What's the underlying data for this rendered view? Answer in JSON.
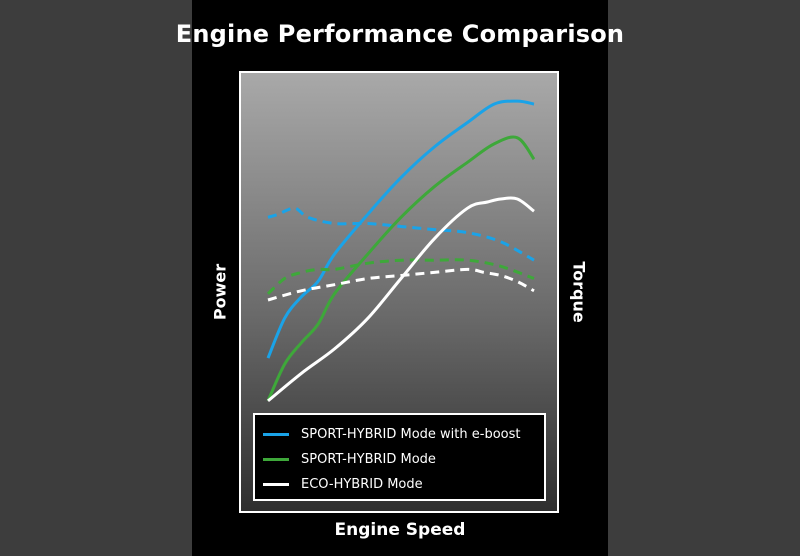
{
  "chart_data": {
    "type": "line",
    "title": "Engine Performance Comparison",
    "xlabel": "Engine Speed",
    "ylabel_left": "Power",
    "ylabel_right": "Torque",
    "xlim": [
      0,
      100
    ],
    "ylim": [
      0,
      100
    ],
    "grid": false,
    "legend_position": "bottom-inside",
    "series": [
      {
        "name": "SPORT-HYBRID Mode with e-boost",
        "color": "#1aa3e8",
        "power": [
          [
            0,
            15
          ],
          [
            5,
            28
          ],
          [
            10,
            35
          ],
          [
            15,
            40
          ],
          [
            20,
            49
          ],
          [
            30,
            62
          ],
          [
            40,
            74
          ],
          [
            50,
            84
          ],
          [
            60,
            92
          ],
          [
            68,
            98
          ],
          [
            75,
            99
          ],
          [
            80,
            98
          ]
        ],
        "torque": [
          [
            0,
            61
          ],
          [
            3,
            62
          ],
          [
            8,
            64
          ],
          [
            12,
            61
          ],
          [
            20,
            59
          ],
          [
            30,
            59
          ],
          [
            40,
            58
          ],
          [
            50,
            57
          ],
          [
            60,
            56
          ],
          [
            70,
            53
          ],
          [
            80,
            47
          ]
        ]
      },
      {
        "name": "SPORT-HYBRID Mode",
        "color": "#3ea83a",
        "power": [
          [
            0,
            1
          ],
          [
            5,
            13
          ],
          [
            10,
            20
          ],
          [
            15,
            26
          ],
          [
            20,
            36
          ],
          [
            30,
            49
          ],
          [
            40,
            61
          ],
          [
            50,
            71
          ],
          [
            60,
            79
          ],
          [
            68,
            85
          ],
          [
            75,
            87
          ],
          [
            80,
            80
          ]
        ],
        "torque": [
          [
            0,
            36
          ],
          [
            5,
            41
          ],
          [
            10,
            43
          ],
          [
            15,
            44
          ],
          [
            20,
            44
          ],
          [
            30,
            46
          ],
          [
            40,
            47
          ],
          [
            50,
            47
          ],
          [
            60,
            47
          ],
          [
            70,
            45
          ],
          [
            80,
            41
          ]
        ]
      },
      {
        "name": "ECO-HYBRID Mode",
        "color": "#ffffff",
        "power": [
          [
            0,
            1
          ],
          [
            10,
            10
          ],
          [
            20,
            18
          ],
          [
            30,
            28
          ],
          [
            40,
            41
          ],
          [
            50,
            54
          ],
          [
            60,
            64
          ],
          [
            66,
            66
          ],
          [
            70,
            67
          ],
          [
            75,
            67
          ],
          [
            80,
            63
          ]
        ],
        "torque": [
          [
            0,
            34
          ],
          [
            10,
            37
          ],
          [
            20,
            39
          ],
          [
            30,
            41
          ],
          [
            40,
            42
          ],
          [
            50,
            43
          ],
          [
            60,
            44
          ],
          [
            65,
            43
          ],
          [
            70,
            42
          ],
          [
            75,
            40
          ],
          [
            80,
            37
          ]
        ]
      }
    ]
  }
}
